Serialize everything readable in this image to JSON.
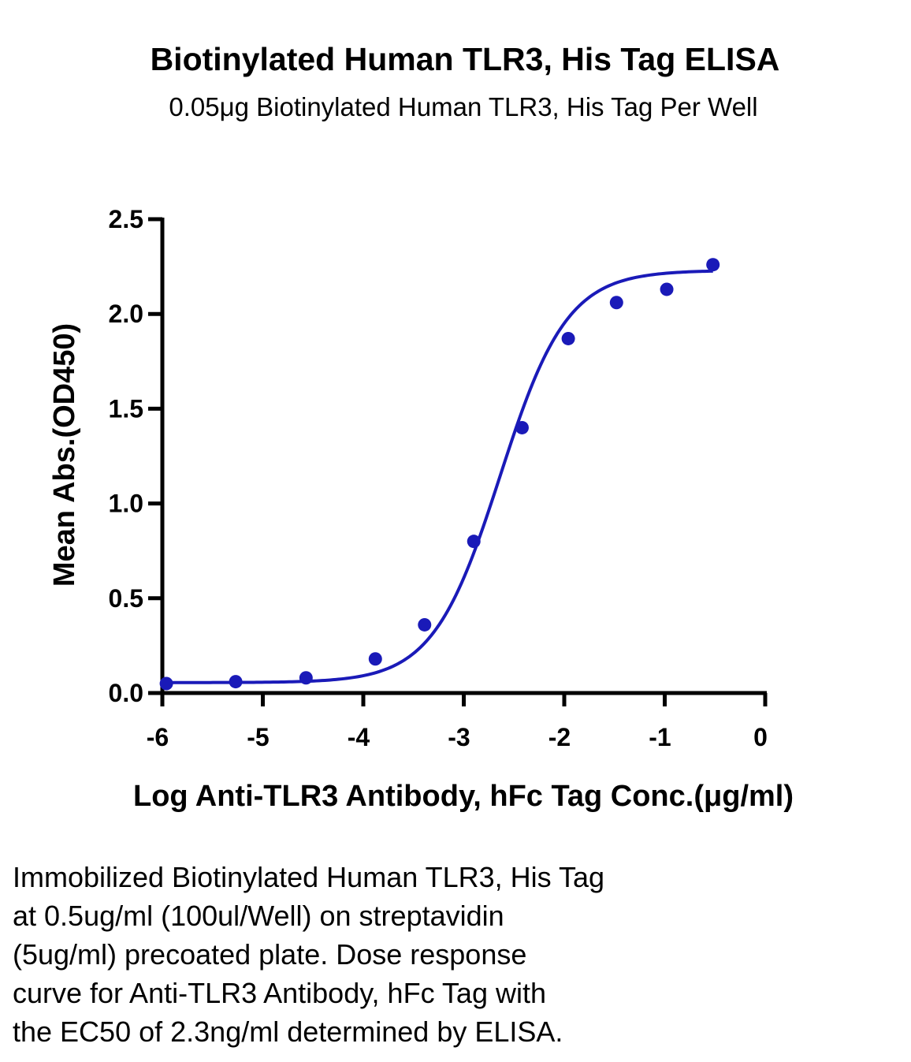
{
  "chart_data": {
    "type": "line",
    "title": "Biotinylated Human TLR3, His Tag ELISA",
    "subtitle": "0.05μg Biotinylated Human TLR3, His Tag Per Well",
    "xlabel": "Log Anti-TLR3 Antibody, hFc Tag Conc.(μg/ml)",
    "ylabel": "Mean Abs.(OD450)",
    "xlim": [
      -6,
      0
    ],
    "ylim": [
      0,
      2.5
    ],
    "x_ticks": [
      "-6",
      "-5",
      "-4",
      "-3",
      "-2",
      "-1",
      "0"
    ],
    "y_ticks": [
      "0.0",
      "0.5",
      "1.0",
      "1.5",
      "2.0",
      "2.5"
    ],
    "grid": false,
    "legend": "none",
    "series": [
      {
        "points": [
          {
            "x": -5.96,
            "y": 0.05
          },
          {
            "x": -5.27,
            "y": 0.06
          },
          {
            "x": -4.57,
            "y": 0.08
          },
          {
            "x": -3.88,
            "y": 0.18
          },
          {
            "x": -3.39,
            "y": 0.36
          },
          {
            "x": -2.9,
            "y": 0.8
          },
          {
            "x": -2.42,
            "y": 1.4
          },
          {
            "x": -1.96,
            "y": 1.87
          },
          {
            "x": -1.48,
            "y": 2.06
          },
          {
            "x": -0.98,
            "y": 2.13
          },
          {
            "x": -0.52,
            "y": 2.26
          }
        ],
        "fit": {
          "model": "4PL",
          "bottom": 0.055,
          "top": 2.23,
          "log_ec50": -2.64,
          "hill_slope": 1.3,
          "x_range": [
            -5.96,
            -0.52
          ]
        }
      }
    ],
    "colors": {
      "series": "#1a1ab8",
      "axis": "#000000"
    }
  },
  "caption": {
    "lines": [
      "Immobilized Biotinylated Human TLR3, His Tag",
      "at 0.5ug/ml (100ul/Well) on streptavidin",
      "(5ug/ml) precoated plate. Dose response",
      "curve for Anti-TLR3 Antibody, hFc Tag with",
      "the EC50 of 2.3ng/ml determined by ELISA."
    ]
  }
}
